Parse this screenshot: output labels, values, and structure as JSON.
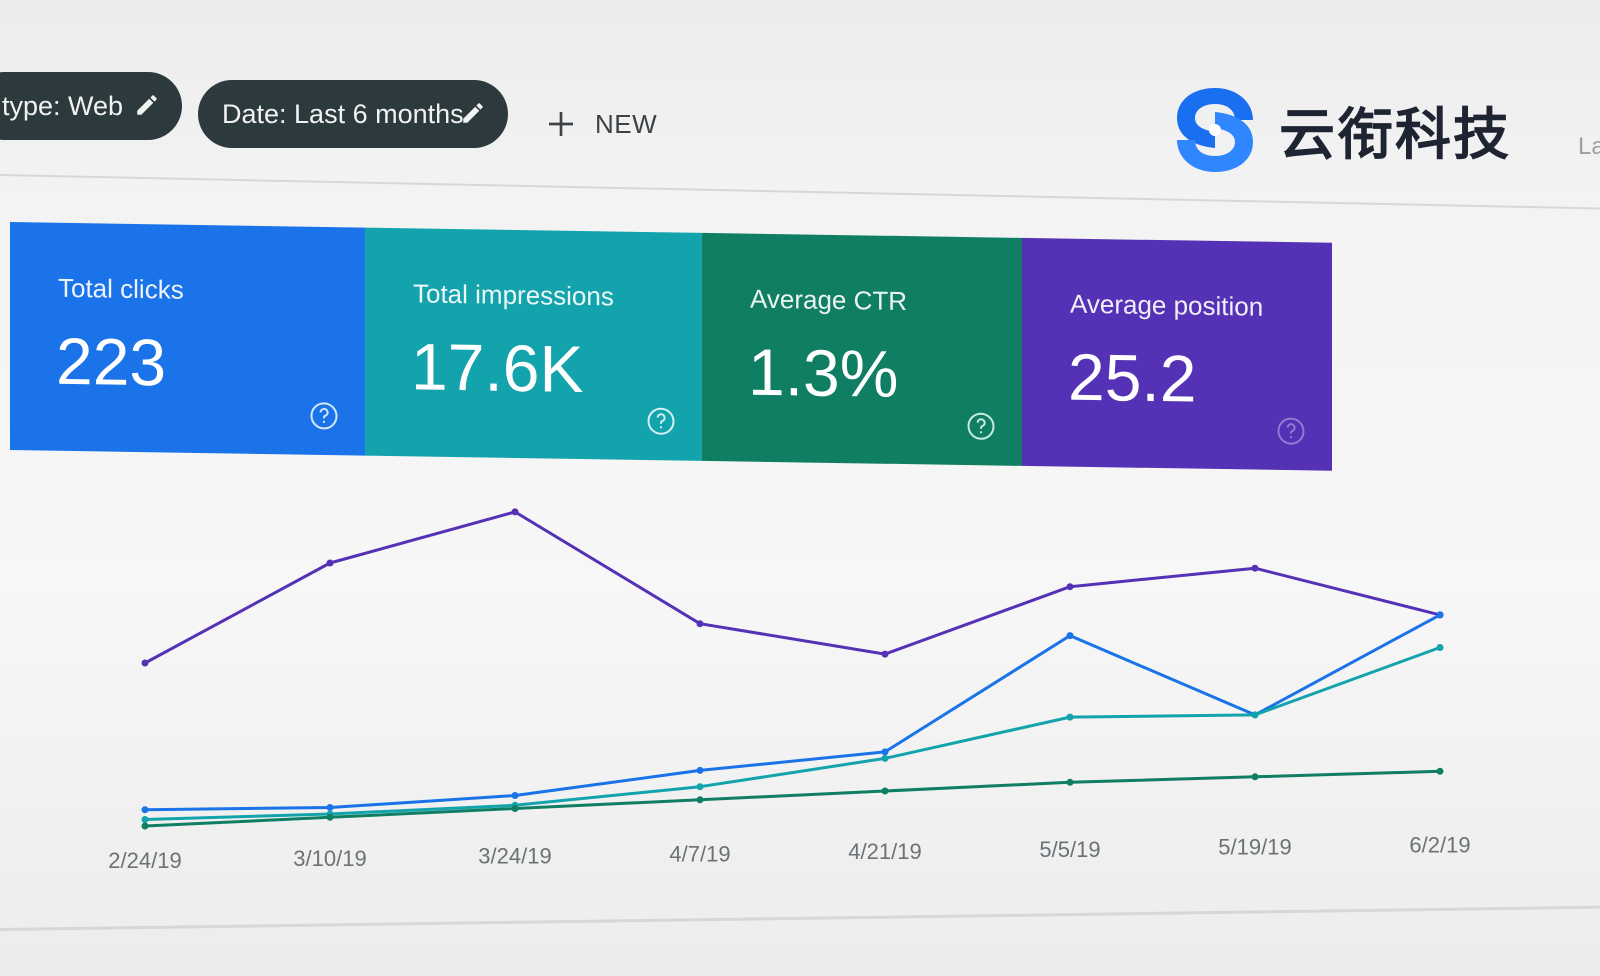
{
  "filters": {
    "search_type_label": "type: Web",
    "date_label": "Date: Last 6 months",
    "new_label": "NEW"
  },
  "logo": {
    "text": "云衔科技",
    "icon": "s-swirl-logo",
    "color": "#1a6ff0"
  },
  "edge_text": "La",
  "metrics": [
    {
      "label": "Total clicks",
      "value": "223",
      "color": "#1a73e8"
    },
    {
      "label": "Total impressions",
      "value": "17.6K",
      "color": "#13a3ac"
    },
    {
      "label": "Average CTR",
      "value": "1.3%",
      "color": "#0f7e62"
    },
    {
      "label": "Average position",
      "value": "25.2",
      "color": "#5531b6"
    }
  ],
  "icons": {
    "edit": "pencil-icon",
    "add": "plus-icon",
    "help": "help-circle-icon"
  },
  "chart_data": {
    "type": "line",
    "title": "",
    "xlabel": "",
    "ylabel": "",
    "grid": false,
    "legend": "none",
    "categories": [
      "2/24/19",
      "3/10/19",
      "3/24/19",
      "4/7/19",
      "4/21/19",
      "5/5/19",
      "5/19/19",
      "6/2/19"
    ],
    "series": [
      {
        "color": "#5531b6",
        "values": [
          0.5,
          0.8,
          0.95,
          0.6,
          0.5,
          0.7,
          0.75,
          0.6
        ]
      },
      {
        "color": "#1a73e8",
        "values": [
          0.05,
          0.05,
          0.08,
          0.15,
          0.2,
          0.55,
          0.3,
          0.6
        ]
      },
      {
        "color": "#13a3ac",
        "values": [
          0.02,
          0.03,
          0.05,
          0.1,
          0.18,
          0.3,
          0.3,
          0.5
        ]
      },
      {
        "color": "#0f7e62",
        "values": [
          0.0,
          0.02,
          0.04,
          0.06,
          0.08,
          0.1,
          0.11,
          0.12
        ]
      }
    ]
  }
}
